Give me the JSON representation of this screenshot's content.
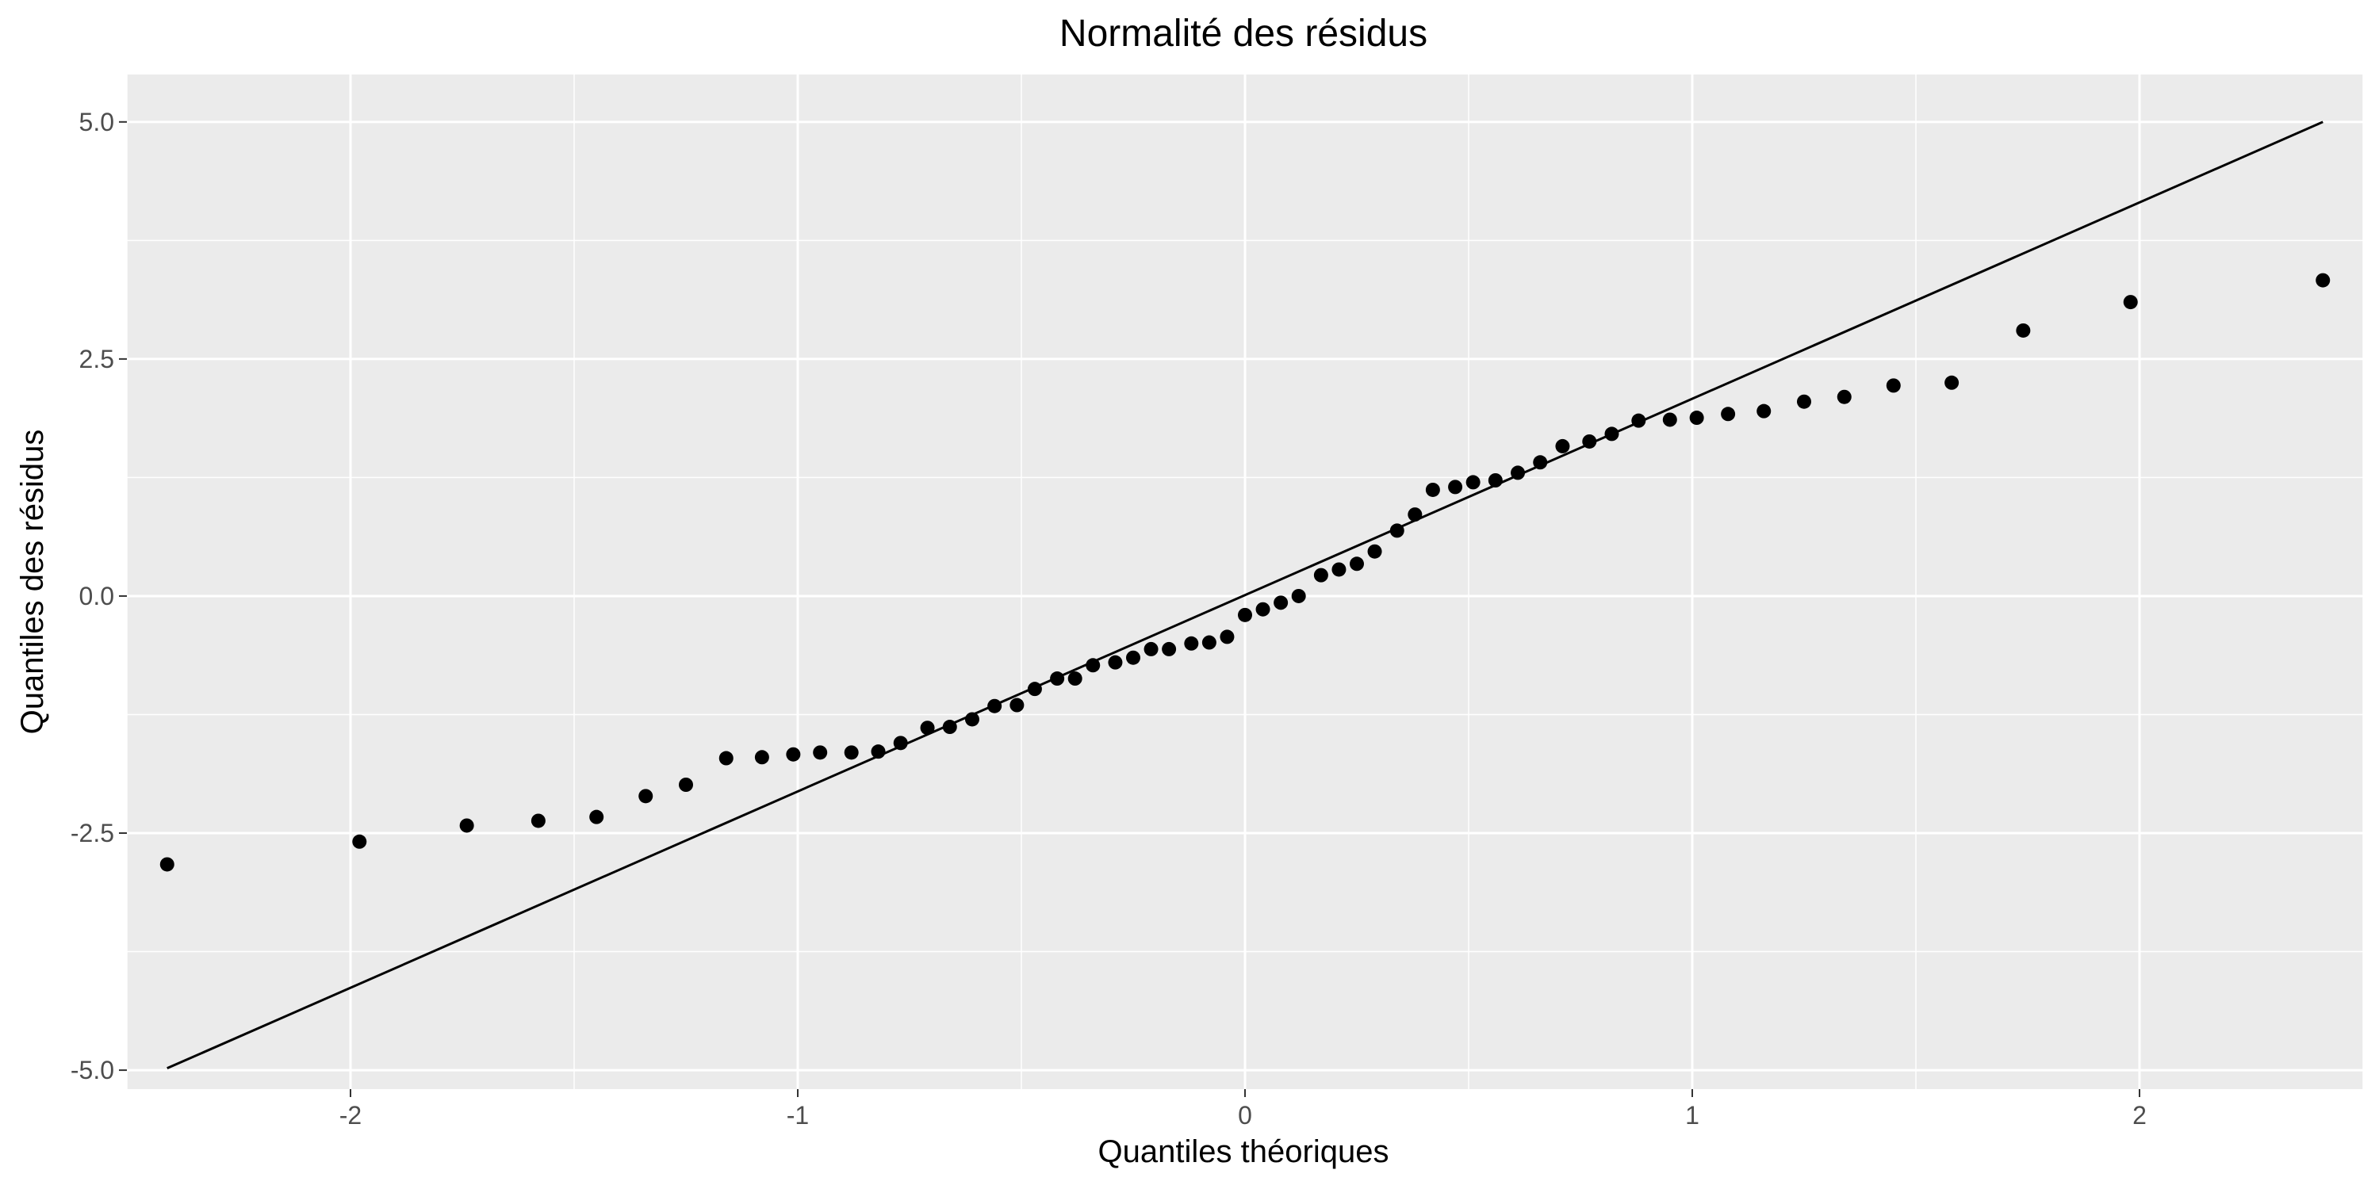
{
  "chart_data": {
    "type": "scatter",
    "title": "Normalité des résidus",
    "xlabel": "Quantiles théoriques",
    "ylabel": "Quantiles des résidus",
    "xlim": [
      -2.5,
      2.5
    ],
    "ylim": [
      -5.2,
      5.5
    ],
    "x_ticks": [
      -2,
      -1,
      0,
      1,
      2
    ],
    "x_tick_labels": [
      "-2",
      "-1",
      "0",
      "1",
      "2"
    ],
    "y_ticks": [
      -5.0,
      -2.5,
      0.0,
      2.5,
      5.0
    ],
    "y_tick_labels": [
      "-5.0",
      "-2.5",
      "0.0",
      "2.5",
      "5.0"
    ],
    "grid": true,
    "background_color": "#ebebeb",
    "grid_color": "#ffffff",
    "point_color": "#000000",
    "line_color": "#000000",
    "reference_line": {
      "x": [
        -2.41,
        2.41
      ],
      "y": [
        -4.98,
        5.0
      ]
    },
    "points": [
      {
        "x": -2.41,
        "y": -2.83
      },
      {
        "x": -1.98,
        "y": -2.59
      },
      {
        "x": -1.74,
        "y": -2.42
      },
      {
        "x": -1.58,
        "y": -2.37
      },
      {
        "x": -1.45,
        "y": -2.33
      },
      {
        "x": -1.34,
        "y": -2.11
      },
      {
        "x": -1.25,
        "y": -1.99
      },
      {
        "x": -1.16,
        "y": -1.71
      },
      {
        "x": -1.08,
        "y": -1.7
      },
      {
        "x": -1.01,
        "y": -1.67
      },
      {
        "x": -0.95,
        "y": -1.65
      },
      {
        "x": -0.88,
        "y": -1.65
      },
      {
        "x": -0.82,
        "y": -1.64
      },
      {
        "x": -0.77,
        "y": -1.55
      },
      {
        "x": -0.71,
        "y": -1.39
      },
      {
        "x": -0.66,
        "y": -1.38
      },
      {
        "x": -0.61,
        "y": -1.3
      },
      {
        "x": -0.56,
        "y": -1.16
      },
      {
        "x": -0.51,
        "y": -1.15
      },
      {
        "x": -0.47,
        "y": -0.98
      },
      {
        "x": -0.42,
        "y": -0.87
      },
      {
        "x": -0.38,
        "y": -0.87
      },
      {
        "x": -0.34,
        "y": -0.73
      },
      {
        "x": -0.29,
        "y": -0.7
      },
      {
        "x": -0.25,
        "y": -0.65
      },
      {
        "x": -0.21,
        "y": -0.56
      },
      {
        "x": -0.17,
        "y": -0.56
      },
      {
        "x": -0.12,
        "y": -0.5
      },
      {
        "x": -0.08,
        "y": -0.49
      },
      {
        "x": -0.04,
        "y": -0.43
      },
      {
        "x": 0.0,
        "y": -0.2
      },
      {
        "x": 0.04,
        "y": -0.14
      },
      {
        "x": 0.08,
        "y": -0.07
      },
      {
        "x": 0.12,
        "y": 0.0
      },
      {
        "x": 0.17,
        "y": 0.22
      },
      {
        "x": 0.21,
        "y": 0.28
      },
      {
        "x": 0.25,
        "y": 0.34
      },
      {
        "x": 0.29,
        "y": 0.47
      },
      {
        "x": 0.34,
        "y": 0.69
      },
      {
        "x": 0.38,
        "y": 0.86
      },
      {
        "x": 0.42,
        "y": 1.12
      },
      {
        "x": 0.47,
        "y": 1.15
      },
      {
        "x": 0.51,
        "y": 1.2
      },
      {
        "x": 0.56,
        "y": 1.22
      },
      {
        "x": 0.61,
        "y": 1.3
      },
      {
        "x": 0.66,
        "y": 1.41
      },
      {
        "x": 0.71,
        "y": 1.58
      },
      {
        "x": 0.77,
        "y": 1.63
      },
      {
        "x": 0.82,
        "y": 1.71
      },
      {
        "x": 0.88,
        "y": 1.85
      },
      {
        "x": 0.95,
        "y": 1.86
      },
      {
        "x": 1.01,
        "y": 1.88
      },
      {
        "x": 1.08,
        "y": 1.92
      },
      {
        "x": 1.16,
        "y": 1.95
      },
      {
        "x": 1.25,
        "y": 2.05
      },
      {
        "x": 1.34,
        "y": 2.1
      },
      {
        "x": 1.45,
        "y": 2.22
      },
      {
        "x": 1.58,
        "y": 2.25
      },
      {
        "x": 1.74,
        "y": 2.8
      },
      {
        "x": 1.98,
        "y": 3.1
      },
      {
        "x": 2.41,
        "y": 3.33
      }
    ]
  }
}
